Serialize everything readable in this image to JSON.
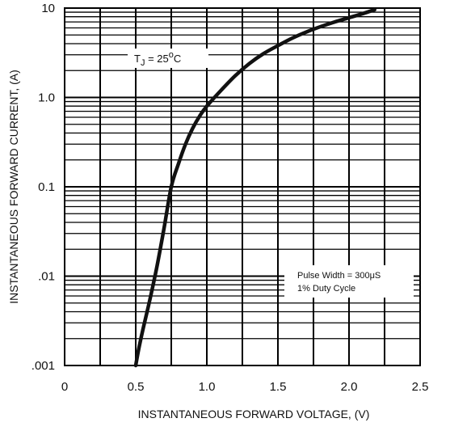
{
  "chart_data": {
    "type": "line",
    "title": "",
    "xlabel": "INSTANTANEOUS FORWARD VOLTAGE, (V)",
    "ylabel": "INSTANTANEOUS FORWARD CURRENT, (A)",
    "xlim": [
      0,
      2.5
    ],
    "ylim": [
      0.001,
      10
    ],
    "y_scale": "log",
    "grid": true,
    "x_ticks": [
      {
        "value": 0,
        "label": "0"
      },
      {
        "value": 0.5,
        "label": "0.5"
      },
      {
        "value": 1.0,
        "label": "1.0"
      },
      {
        "value": 1.5,
        "label": "1.5"
      },
      {
        "value": 2.0,
        "label": "2.0"
      },
      {
        "value": 2.5,
        "label": "2.5"
      }
    ],
    "y_ticks": [
      {
        "value": 0.001,
        "label": ".001"
      },
      {
        "value": 0.01,
        "label": ".01"
      },
      {
        "value": 0.1,
        "label": "0.1"
      },
      {
        "value": 1,
        "label": "1.0"
      },
      {
        "value": 10,
        "label": "10"
      }
    ],
    "series": [
      {
        "x": [
          0.5,
          0.52,
          0.55,
          0.6,
          0.65,
          0.7,
          0.75,
          0.8,
          0.85,
          0.9,
          0.95,
          1.0,
          1.1,
          1.2,
          1.3,
          1.4,
          1.5,
          1.6,
          1.7,
          1.8,
          1.9,
          2.0,
          2.1,
          2.18
        ],
        "y": [
          0.001,
          0.0015,
          0.0025,
          0.0055,
          0.013,
          0.035,
          0.1,
          0.18,
          0.3,
          0.45,
          0.62,
          0.8,
          1.2,
          1.75,
          2.4,
          3.1,
          3.8,
          4.6,
          5.4,
          6.2,
          7.0,
          7.8,
          8.7,
          9.6
        ]
      }
    ],
    "annotations": [
      {
        "id": "tj",
        "main": "T",
        "sub": "J",
        "rest": " = 25",
        "sup": "o",
        "end": "C"
      },
      {
        "id": "pulse",
        "line1": "Pulse Width = 300μS",
        "line2": "1% Duty Cycle"
      }
    ]
  }
}
